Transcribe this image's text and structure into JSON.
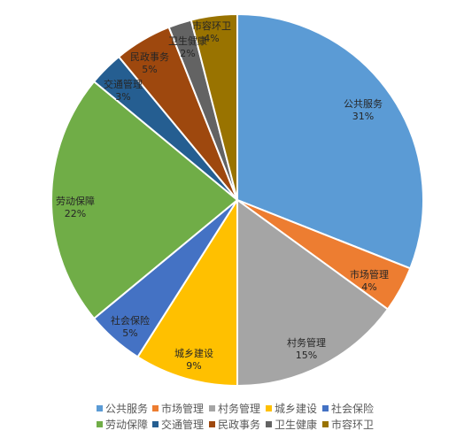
{
  "chart_data": {
    "type": "pie",
    "title": "",
    "legend_position": "bottom",
    "categories": [
      "公共服务",
      "市场管理",
      "村务管理",
      "城乡建设",
      "社会保险",
      "劳动保障",
      "交通管理",
      "民政事务",
      "卫生健康",
      "市容环卫"
    ],
    "values": [
      31,
      4,
      15,
      9,
      5,
      22,
      3,
      5,
      2,
      4
    ],
    "value_labels": [
      "31%",
      "4%",
      "15%",
      "9%",
      "5%",
      "22%",
      "3%",
      "5%",
      "2%",
      "4%"
    ],
    "colors": [
      "#5B9BD5",
      "#ED7D31",
      "#A5A5A5",
      "#FFC000",
      "#4472C4",
      "#70AD47",
      "#255E91",
      "#9E480E",
      "#636363",
      "#997300"
    ]
  }
}
